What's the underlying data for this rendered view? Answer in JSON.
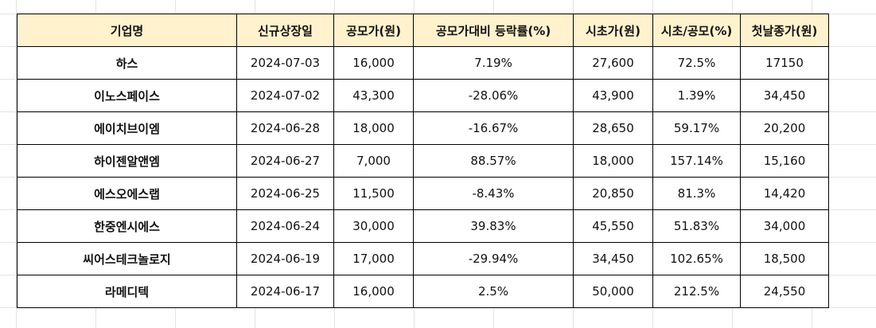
{
  "table": {
    "headers": [
      "기업명",
      "신규상장일",
      "공모가(원)",
      "공모가대비 등락률(%)",
      "시초가(원)",
      "시초/공모(%)",
      "첫날종가(원)"
    ],
    "rows": [
      [
        "하스",
        "2024-07-03",
        "16,000",
        "7.19%",
        "27,600",
        "72.5%",
        "17150"
      ],
      [
        "이노스페이스",
        "2024-07-02",
        "43,300",
        "-28.06%",
        "43,900",
        "1.39%",
        "34,450"
      ],
      [
        "에이치브이엠",
        "2024-06-28",
        "18,000",
        "-16.67%",
        "28,650",
        "59.17%",
        "20,200"
      ],
      [
        "하이젠알앤엠",
        "2024-06-27",
        "7,000",
        "88.57%",
        "18,000",
        "157.14%",
        "15,160"
      ],
      [
        "에스오에스랩",
        "2024-06-25",
        "11,500",
        "-8.43%",
        "20,850",
        "81.3%",
        "14,420"
      ],
      [
        "한중엔시에스",
        "2024-06-24",
        "30,000",
        "39.83%",
        "45,550",
        "51.83%",
        "34,000"
      ],
      [
        "씨어스테크놀로지",
        "2024-06-19",
        "17,000",
        "-29.94%",
        "34,450",
        "102.65%",
        "18,500"
      ],
      [
        "라메디텍",
        "2024-06-17",
        "16,000",
        "2.5%",
        "50,000",
        "212.5%",
        "24,550"
      ]
    ]
  },
  "colors": {
    "header_background": "#fff2cc",
    "border": "#000000",
    "gridline": "#e3e3e3"
  }
}
